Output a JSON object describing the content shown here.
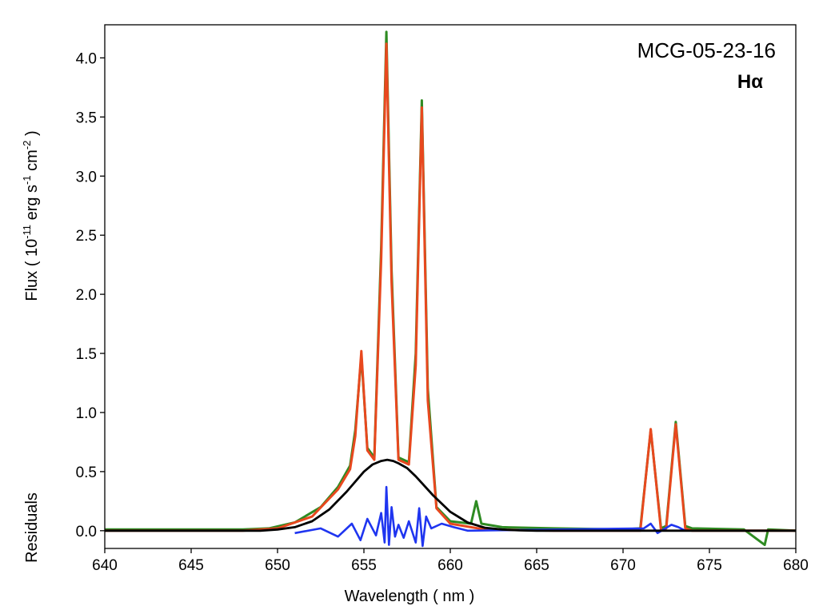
{
  "chart_data": {
    "type": "line",
    "annotation_object": "MCG-05-23-16",
    "annotation_line": "Hα",
    "xlabel": "Wavelength ( nm )",
    "ylabel": {
      "main": "Flux ( 10",
      "exp1": "-11",
      "mid": " erg s",
      "exp2": "-1",
      "mid2": " cm",
      "exp3": "-2",
      "end": " )"
    },
    "ylabel_secondary": "Residuals",
    "xlim": [
      640,
      680
    ],
    "ylim": [
      -0.15,
      4.28
    ],
    "xticks": [
      640,
      645,
      650,
      655,
      660,
      665,
      670,
      675,
      680
    ],
    "xtick_labels": [
      "640",
      "645",
      "650",
      "655",
      "660",
      "665",
      "670",
      "675",
      "680"
    ],
    "yticks": [
      0,
      0.5,
      1,
      1.5,
      2,
      2.5,
      3,
      3.5,
      4
    ],
    "ytick_labels": [
      "0.0",
      "0.5",
      "1.0",
      "1.5",
      "2.0",
      "2.5",
      "3.0",
      "3.5",
      "4.0"
    ],
    "grid": false,
    "colors": {
      "observed": "#2e8b22",
      "fit": "#e8481e",
      "broad": "#000000",
      "residual": "#1f35f0"
    },
    "series": [
      {
        "key": "observed",
        "x": [
          640.0,
          644.0,
          648.0,
          649.5,
          651.0,
          652.5,
          653.5,
          654.2,
          654.5,
          654.85,
          655.2,
          655.6,
          656.0,
          656.3,
          656.6,
          657.0,
          657.6,
          658.0,
          658.35,
          658.7,
          659.2,
          660.0,
          661.2,
          661.5,
          661.8,
          663.0,
          666.0,
          670.0,
          671.0,
          671.6,
          672.2,
          672.5,
          673.05,
          673.6,
          674.0,
          677.0,
          678.2,
          678.4,
          680.0
        ],
        "y": [
          0.01,
          0.01,
          0.01,
          0.02,
          0.07,
          0.2,
          0.37,
          0.55,
          0.85,
          1.48,
          0.7,
          0.62,
          2.4,
          4.22,
          2.2,
          0.62,
          0.58,
          1.5,
          3.64,
          1.2,
          0.2,
          0.08,
          0.06,
          0.25,
          0.06,
          0.03,
          0.02,
          0.01,
          0.02,
          0.85,
          0.02,
          0.04,
          0.92,
          0.04,
          0.02,
          0.01,
          -0.12,
          0.01,
          0.0
        ]
      },
      {
        "key": "fit",
        "x": [
          640.0,
          648.0,
          650.0,
          652.0,
          653.5,
          654.2,
          654.5,
          654.85,
          655.2,
          655.6,
          656.0,
          656.3,
          656.6,
          657.0,
          657.6,
          658.0,
          658.35,
          658.7,
          659.2,
          660.0,
          662.0,
          666.0,
          670.0,
          671.0,
          671.6,
          672.2,
          672.5,
          673.05,
          673.6,
          674.0,
          680.0
        ],
        "y": [
          0.0,
          0.0,
          0.02,
          0.12,
          0.35,
          0.52,
          0.8,
          1.52,
          0.68,
          0.6,
          2.3,
          4.12,
          2.1,
          0.6,
          0.56,
          1.4,
          3.58,
          1.1,
          0.19,
          0.06,
          0.01,
          0.0,
          0.0,
          0.0,
          0.86,
          0.0,
          0.02,
          0.9,
          0.02,
          0.0,
          0.0
        ]
      },
      {
        "key": "broad",
        "x": [
          640.0,
          648.0,
          649.0,
          650.0,
          651.0,
          652.0,
          653.0,
          654.0,
          655.0,
          655.5,
          656.0,
          656.35,
          656.7,
          657.0,
          657.5,
          658.0,
          659.0,
          660.0,
          661.0,
          662.0,
          663.0,
          664.0,
          665.0,
          680.0
        ],
        "y": [
          0.0,
          0.0,
          0.0,
          0.01,
          0.03,
          0.08,
          0.18,
          0.33,
          0.5,
          0.56,
          0.59,
          0.6,
          0.59,
          0.57,
          0.53,
          0.46,
          0.3,
          0.16,
          0.07,
          0.025,
          0.01,
          0.003,
          0.0,
          0.0
        ]
      },
      {
        "key": "residual",
        "x": [
          651.0,
          652.5,
          653.5,
          654.3,
          654.8,
          655.2,
          655.7,
          656.0,
          656.2,
          656.3,
          656.45,
          656.6,
          656.8,
          657.0,
          657.3,
          657.6,
          658.0,
          658.2,
          658.4,
          658.6,
          658.9,
          659.5,
          660.2,
          661.0,
          671.2,
          671.6,
          672.0,
          672.8,
          673.2,
          673.6
        ],
        "y": [
          -0.02,
          0.02,
          -0.05,
          0.06,
          -0.08,
          0.1,
          -0.04,
          0.15,
          -0.1,
          0.37,
          -0.12,
          0.2,
          -0.05,
          0.05,
          -0.06,
          0.08,
          -0.1,
          0.19,
          -0.13,
          0.12,
          0.02,
          0.06,
          0.03,
          0.0,
          0.02,
          0.06,
          -0.02,
          0.05,
          0.03,
          0.0
        ]
      }
    ]
  }
}
